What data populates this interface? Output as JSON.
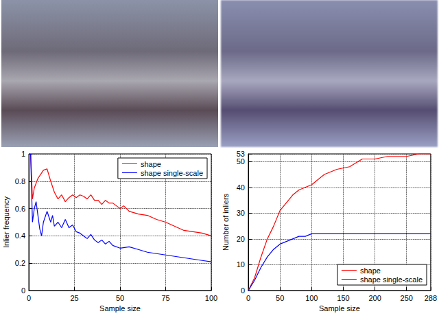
{
  "chart_data": [
    {
      "type": "line",
      "xlabel": "Sample size",
      "ylabel": "Inlier frequency",
      "xlim": [
        0,
        100
      ],
      "xticks": [
        0,
        25,
        50,
        75,
        100
      ],
      "ylim": [
        0,
        1
      ],
      "yticks": [
        0,
        0.2,
        0.4,
        0.6,
        0.8,
        1
      ],
      "grid": true,
      "legend": "upper right",
      "series": [
        {
          "name": "shape",
          "color": "#ff0000",
          "x": [
            1,
            2,
            3,
            5,
            8,
            10,
            12,
            14,
            16,
            18,
            20,
            22,
            24,
            26,
            28,
            30,
            32,
            34,
            36,
            38,
            40,
            42,
            44,
            46,
            48,
            50,
            52,
            55,
            60,
            65,
            70,
            75,
            80,
            85,
            90,
            95,
            100
          ],
          "values": [
            1,
            0.67,
            0.75,
            0.82,
            0.88,
            0.89,
            0.8,
            0.72,
            0.67,
            0.7,
            0.65,
            0.68,
            0.7,
            0.68,
            0.7,
            0.69,
            0.67,
            0.7,
            0.66,
            0.66,
            0.63,
            0.66,
            0.64,
            0.64,
            0.62,
            0.6,
            0.62,
            0.58,
            0.56,
            0.55,
            0.52,
            0.5,
            0.47,
            0.44,
            0.43,
            0.42,
            0.4
          ]
        },
        {
          "name": "shape single-scale",
          "color": "#0000ff",
          "x": [
            1,
            2,
            3,
            4,
            5,
            6,
            7,
            8,
            10,
            12,
            13,
            14,
            16,
            18,
            20,
            22,
            24,
            26,
            28,
            30,
            32,
            34,
            36,
            38,
            40,
            42,
            44,
            46,
            50,
            55,
            60,
            65,
            70,
            75,
            80,
            85,
            90,
            95,
            100
          ],
          "values": [
            1,
            0.5,
            0.6,
            0.65,
            0.55,
            0.45,
            0.4,
            0.5,
            0.58,
            0.5,
            0.55,
            0.47,
            0.5,
            0.46,
            0.52,
            0.46,
            0.48,
            0.43,
            0.42,
            0.4,
            0.38,
            0.41,
            0.37,
            0.35,
            0.37,
            0.34,
            0.36,
            0.33,
            0.31,
            0.32,
            0.3,
            0.28,
            0.27,
            0.26,
            0.25,
            0.24,
            0.23,
            0.22,
            0.21
          ]
        }
      ]
    },
    {
      "type": "line",
      "xlabel": "Sample size",
      "ylabel": "Number of inliers",
      "xlim": [
        0,
        288
      ],
      "xticks": [
        0,
        50,
        100,
        150,
        200,
        250,
        288
      ],
      "ylim": [
        0,
        53
      ],
      "yticks": [
        0,
        10,
        20,
        30,
        40,
        50,
        53
      ],
      "grid": true,
      "legend": "lower right",
      "series": [
        {
          "name": "shape",
          "color": "#ff0000",
          "x": [
            0,
            10,
            20,
            30,
            40,
            50,
            60,
            70,
            80,
            90,
            100,
            110,
            120,
            130,
            140,
            160,
            180,
            200,
            220,
            250,
            270,
            288
          ],
          "values": [
            0,
            5,
            13,
            20,
            25,
            31,
            34,
            37,
            39,
            40,
            41,
            43,
            45,
            46,
            47,
            48,
            51,
            51,
            52,
            52,
            53,
            53
          ]
        },
        {
          "name": "shape single-scale",
          "color": "#0000ff",
          "x": [
            0,
            10,
            20,
            30,
            40,
            50,
            60,
            70,
            80,
            90,
            100,
            288
          ],
          "values": [
            0,
            4,
            9,
            13,
            16,
            18,
            19,
            20,
            21,
            21,
            22,
            22
          ]
        }
      ]
    }
  ]
}
